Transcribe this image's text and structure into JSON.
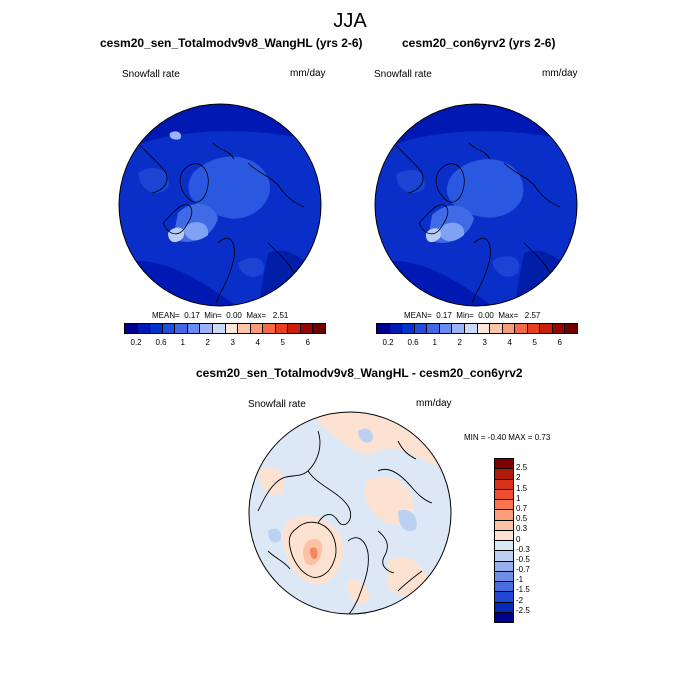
{
  "page_title": "JJA",
  "panels": [
    {
      "title": "cesm20_sen_Totalmodv9v8_WangHL (yrs 2-6)",
      "variable": "Snowfall rate",
      "units": "mm/day",
      "stats": {
        "mean_label": "MEAN=",
        "mean": "0.17",
        "min_label": "Min=",
        "min": "0.00",
        "max_label": "Max=",
        "max": "2.51"
      }
    },
    {
      "title": "cesm20_con6yrv2 (yrs 2-6)",
      "variable": "Snowfall rate",
      "units": "mm/day",
      "stats": {
        "mean_label": "MEAN=",
        "mean": "0.17",
        "min_label": "Min=",
        "min": "0.00",
        "max_label": "Max=",
        "max": "2.57"
      }
    },
    {
      "title": "cesm20_sen_Totalmodv9v8_WangHL - cesm20_con6yrv2",
      "variable": "Snowfall rate",
      "units": "mm/day",
      "minmax_text": "MIN =  -0.40 MAX =    0.73"
    }
  ],
  "chart_data": [
    {
      "type": "heatmap",
      "projection": "north-polar-stereographic",
      "title": "cesm20_sen_Totalmodv9v8_WangHL (yrs 2-6)",
      "variable": "Snowfall rate",
      "units": "mm/day",
      "mean": 0.17,
      "min": 0.0,
      "max": 2.51,
      "colorbar_levels": [
        0.2,
        0.4,
        0.6,
        0.8,
        1,
        1.5,
        2,
        2.5,
        3,
        3.5,
        4,
        4.5,
        5,
        5.5,
        6
      ],
      "colorbar_tick_labels": [
        "0.2",
        "0.6",
        "1",
        "2",
        "3",
        "4",
        "5",
        "6"
      ],
      "colorbar_colors": [
        "#00008f",
        "#0019b2",
        "#0033cc",
        "#214ddb",
        "#4268e6",
        "#6a8cf0",
        "#9ab3f7",
        "#c8d9fc",
        "#fde6d8",
        "#fcc4a8",
        "#fa9b77",
        "#f56a45",
        "#e8401f",
        "#c81e0c",
        "#930700",
        "#6e0000"
      ]
    },
    {
      "type": "heatmap",
      "projection": "north-polar-stereographic",
      "title": "cesm20_con6yrv2 (yrs 2-6)",
      "variable": "Snowfall rate",
      "units": "mm/day",
      "mean": 0.17,
      "min": 0.0,
      "max": 2.57,
      "colorbar_levels": [
        0.2,
        0.4,
        0.6,
        0.8,
        1,
        1.5,
        2,
        2.5,
        3,
        3.5,
        4,
        4.5,
        5,
        5.5,
        6
      ],
      "colorbar_tick_labels": [
        "0.2",
        "0.6",
        "1",
        "2",
        "3",
        "4",
        "5",
        "6"
      ],
      "colorbar_colors": [
        "#00008f",
        "#0019b2",
        "#0033cc",
        "#214ddb",
        "#4268e6",
        "#6a8cf0",
        "#9ab3f7",
        "#c8d9fc",
        "#fde6d8",
        "#fcc4a8",
        "#fa9b77",
        "#f56a45",
        "#e8401f",
        "#c81e0c",
        "#930700",
        "#6e0000"
      ]
    },
    {
      "type": "heatmap",
      "projection": "north-polar-stereographic",
      "title": "cesm20_sen_Totalmodv9v8_WangHL - cesm20_con6yrv2",
      "variable": "Snowfall rate",
      "units": "mm/day",
      "min": -0.4,
      "max": 0.73,
      "colorbar_tick_labels": [
        "2.5",
        "2",
        "1.5",
        "1",
        "0.7",
        "0.5",
        "0.3",
        "0",
        "-0.3",
        "-0.5",
        "-0.7",
        "-1",
        "-1.5",
        "-2",
        "-2.5"
      ],
      "colorbar_colors": [
        "#7f0000",
        "#b01a0a",
        "#d8301a",
        "#f04d2e",
        "#f8764f",
        "#fb9e7a",
        "#fcc2a5",
        "#fde2d2",
        "#dde8f6",
        "#bcd0f2",
        "#95b0ec",
        "#6f8fe6",
        "#476ce0",
        "#2048d4",
        "#0a28b8",
        "#00008f"
      ]
    }
  ]
}
